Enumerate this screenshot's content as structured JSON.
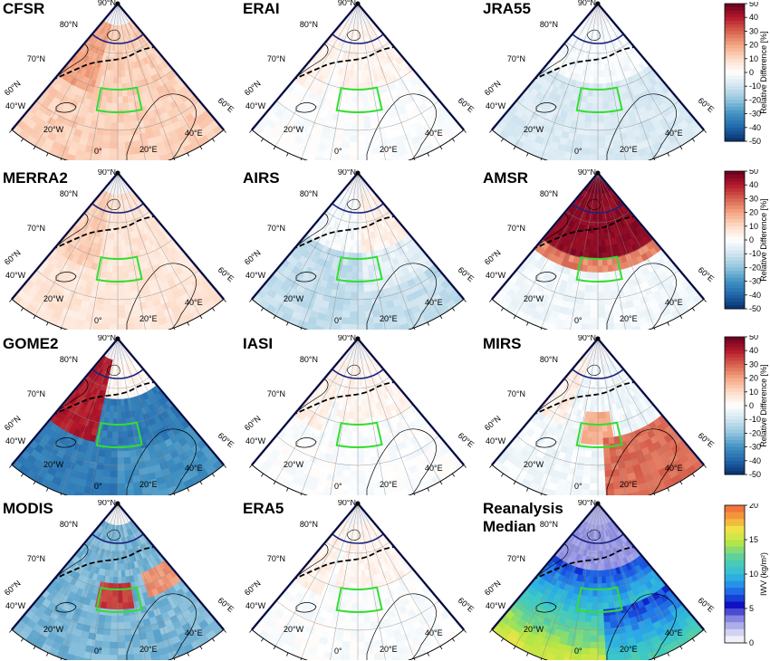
{
  "figure": {
    "panels": [
      {
        "id": "cfsr",
        "title": "CFSR",
        "scheme": "diff",
        "tone": "red",
        "dark_pole": false
      },
      {
        "id": "erai",
        "title": "ERAI",
        "scheme": "diff",
        "tone": "light",
        "dark_pole": false
      },
      {
        "id": "jra55",
        "title": "JRA55",
        "scheme": "diff",
        "tone": "blue_light",
        "dark_pole": false
      },
      {
        "id": "merra2",
        "title": "MERRA2",
        "scheme": "diff",
        "tone": "red_light",
        "dark_pole": false
      },
      {
        "id": "airs",
        "title": "AIRS",
        "scheme": "diff",
        "tone": "blue",
        "dark_pole": false
      },
      {
        "id": "amsr",
        "title": "AMSR",
        "scheme": "diff",
        "tone": "amsr",
        "dark_pole": true
      },
      {
        "id": "gome2",
        "title": "GOME2",
        "scheme": "diff",
        "tone": "gome",
        "dark_pole": false
      },
      {
        "id": "iasi",
        "title": "IASI",
        "scheme": "diff",
        "tone": "light",
        "dark_pole": false
      },
      {
        "id": "mirs",
        "title": "MIRS",
        "scheme": "diff",
        "tone": "mirs",
        "dark_pole": false
      },
      {
        "id": "modis",
        "title": "MODIS",
        "scheme": "diff",
        "tone": "modis",
        "dark_pole": false
      },
      {
        "id": "era5",
        "title": "ERA5",
        "scheme": "diff",
        "tone": "light",
        "dark_pole": false
      },
      {
        "id": "median",
        "title": "Reanalysis",
        "title2": "Median",
        "scheme": "iwv",
        "tone": "iwv",
        "dark_pole": false
      }
    ],
    "map_labels": {
      "pole": "90°N",
      "lat80": "80°N",
      "lat70": "70°N",
      "lat60": "60°N",
      "lon40w": "40°W",
      "lon20w": "20°W",
      "lon0": "0°",
      "lon20e": "20°E",
      "lon40e": "40°E",
      "lon60e": "60°E"
    },
    "colorbars": [
      {
        "id": "cb1",
        "title": "Relative Difference [%]",
        "ticks": [
          "50",
          "40",
          "30",
          "20",
          "10",
          "0",
          "-10",
          "-20",
          "-30",
          "-40",
          "-50"
        ],
        "scheme": "diff"
      },
      {
        "id": "cb2",
        "title": "Relative Difference [%]",
        "ticks": [
          "50",
          "40",
          "30",
          "20",
          "10",
          "0",
          "-10",
          "-20",
          "-30",
          "-40",
          "-50"
        ],
        "scheme": "diff"
      },
      {
        "id": "cb3",
        "title": "Relative Difference [%]",
        "ticks": [
          "50",
          "40",
          "30",
          "20",
          "10",
          "0",
          "-10",
          "-20",
          "-30",
          "-40",
          "-50"
        ],
        "scheme": "diff"
      },
      {
        "id": "cb4",
        "title": "IWV (kg/m²)",
        "ticks": [
          "20",
          "15",
          "10",
          "5",
          "0"
        ],
        "scheme": "iwv"
      }
    ],
    "colors": {
      "box": "#33dd33",
      "pole_ring": "#1a237e",
      "frame": "#000000",
      "diff_stops": [
        "#08306b",
        "#2166ac",
        "#4393c3",
        "#92c5de",
        "#d1e5f0",
        "#ffffff",
        "#fddbc7",
        "#f4a582",
        "#d6604d",
        "#b2182b",
        "#67001f"
      ],
      "iwv_stops": [
        "#ffffff",
        "#c8c8f0",
        "#8080e0",
        "#1010c0",
        "#1e64e6",
        "#2aa8e8",
        "#3cc8c8",
        "#64d296",
        "#b4e646",
        "#f0e646",
        "#f5a03c",
        "#f0643c"
      ]
    }
  }
}
